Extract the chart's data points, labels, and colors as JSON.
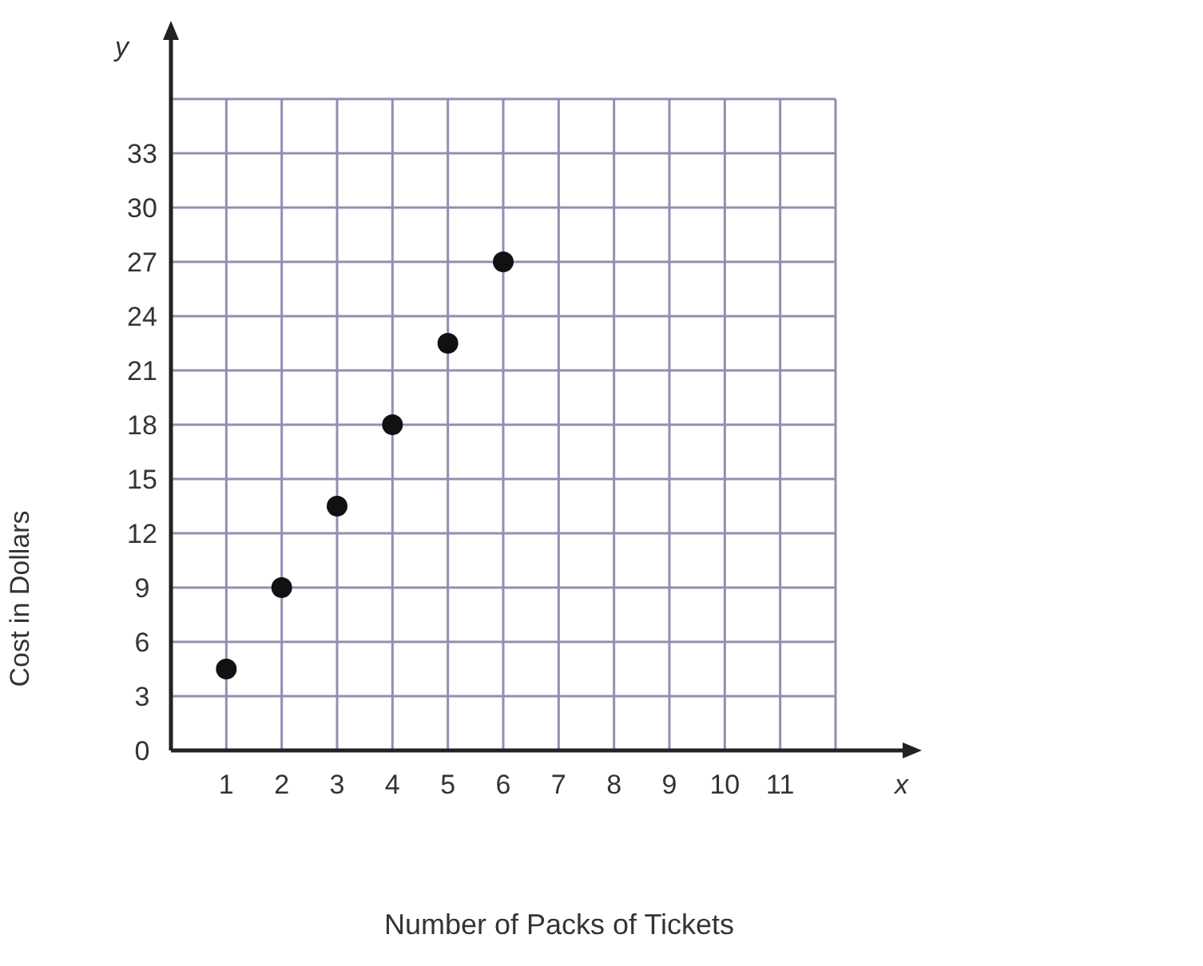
{
  "chart_data": {
    "type": "scatter",
    "xlabel": "Number of Packs of Tickets",
    "ylabel": "Cost in Dollars",
    "annotations": [
      "y",
      "x"
    ],
    "x": [
      1,
      2,
      3,
      4,
      5,
      6
    ],
    "values": [
      4.5,
      9,
      13.5,
      18,
      22.5,
      27
    ],
    "color": "#111111",
    "marker": "circle",
    "xlim": [
      0,
      12
    ],
    "xticks": [
      1,
      2,
      3,
      4,
      5,
      6,
      7,
      8,
      9,
      10,
      11,
      {
        "value": 12,
        "label": null
      }
    ],
    "ylim": [
      0,
      36
    ],
    "yticks": [
      0,
      3,
      6,
      9,
      12,
      15,
      18,
      21,
      24,
      27,
      30,
      33,
      {
        "value": 36,
        "label": null
      }
    ],
    "grid": true
  }
}
